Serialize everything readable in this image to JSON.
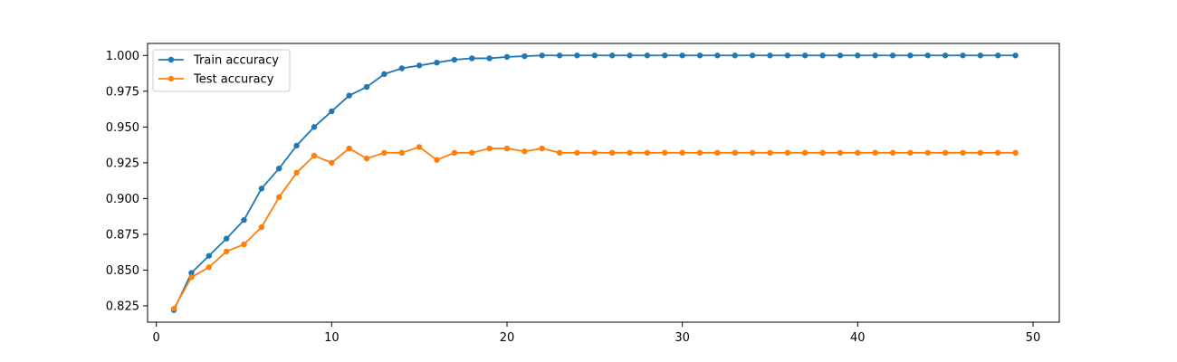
{
  "chart_data": {
    "type": "line",
    "title": "",
    "xlabel": "",
    "ylabel": "",
    "xlim": [
      -0.5,
      51.5
    ],
    "ylim": [
      0.8136,
      1.0084
    ],
    "xticks": [
      0,
      10,
      20,
      30,
      40,
      50
    ],
    "xtick_labels": [
      "0",
      "10",
      "20",
      "30",
      "40",
      "50"
    ],
    "yticks": [
      0.825,
      0.85,
      0.875,
      0.9,
      0.925,
      0.95,
      0.975,
      1.0
    ],
    "ytick_labels": [
      "0.825",
      "0.850",
      "0.875",
      "0.900",
      "0.925",
      "0.950",
      "0.975",
      "1.000"
    ],
    "grid": false,
    "legend_position": "top-left",
    "x": [
      1,
      2,
      3,
      4,
      5,
      6,
      7,
      8,
      9,
      10,
      11,
      12,
      13,
      14,
      15,
      16,
      17,
      18,
      19,
      20,
      21,
      22,
      23,
      24,
      25,
      26,
      27,
      28,
      29,
      30,
      31,
      32,
      33,
      34,
      35,
      36,
      37,
      38,
      39,
      40,
      41,
      42,
      43,
      44,
      45,
      46,
      47,
      48,
      49
    ],
    "series": [
      {
        "name": "Train accuracy",
        "color": "#1f77b4",
        "marker": "circle",
        "values": [
          0.822,
          0.848,
          0.86,
          0.872,
          0.885,
          0.907,
          0.921,
          0.937,
          0.95,
          0.961,
          0.972,
          0.978,
          0.987,
          0.991,
          0.993,
          0.995,
          0.997,
          0.998,
          0.998,
          0.999,
          0.9995,
          1.0,
          1.0,
          1.0,
          1.0,
          1.0,
          1.0,
          1.0,
          1.0,
          1.0,
          1.0,
          1.0,
          1.0,
          1.0,
          1.0,
          1.0,
          1.0,
          1.0,
          1.0,
          1.0,
          1.0,
          1.0,
          1.0,
          1.0,
          1.0,
          1.0,
          1.0,
          1.0,
          1.0
        ]
      },
      {
        "name": "Test accuracy",
        "color": "#ff7f0e",
        "marker": "circle",
        "values": [
          0.823,
          0.845,
          0.852,
          0.863,
          0.868,
          0.88,
          0.901,
          0.918,
          0.93,
          0.925,
          0.935,
          0.928,
          0.932,
          0.932,
          0.936,
          0.927,
          0.932,
          0.932,
          0.935,
          0.935,
          0.933,
          0.935,
          0.932,
          0.932,
          0.932,
          0.932,
          0.932,
          0.932,
          0.932,
          0.932,
          0.932,
          0.932,
          0.932,
          0.932,
          0.932,
          0.932,
          0.932,
          0.932,
          0.932,
          0.932,
          0.932,
          0.932,
          0.932,
          0.932,
          0.932,
          0.932,
          0.932,
          0.932,
          0.932
        ]
      }
    ]
  }
}
